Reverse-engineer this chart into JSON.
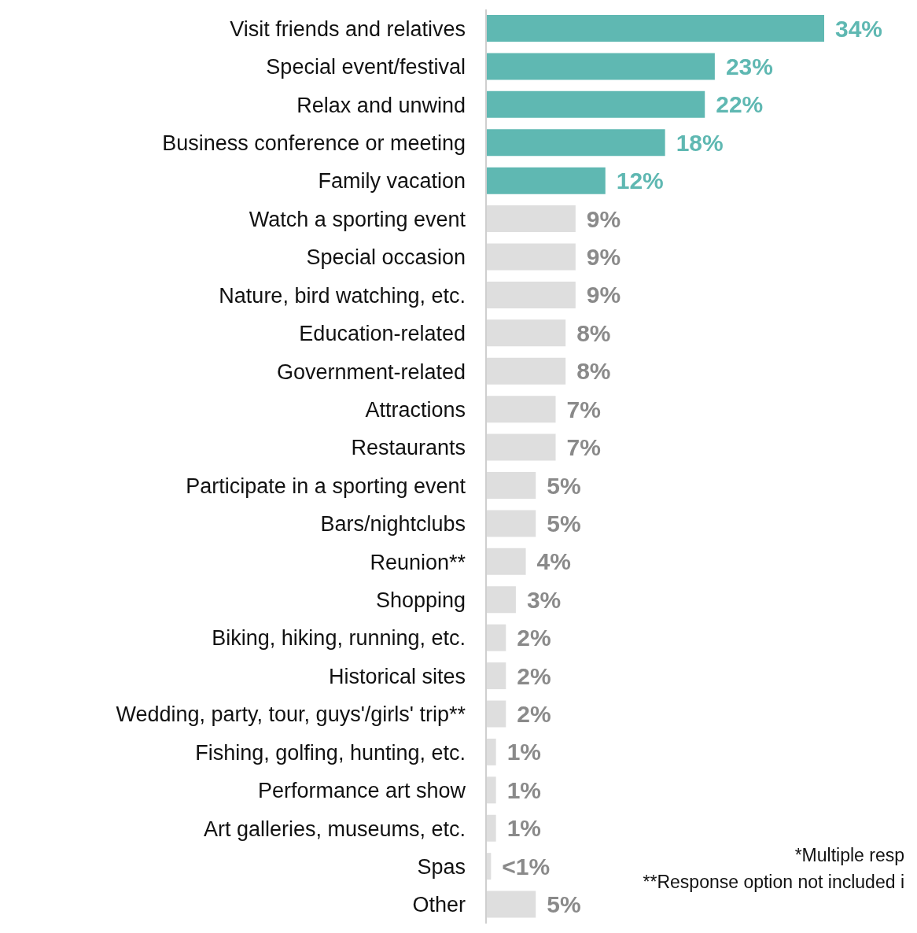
{
  "chart_data": {
    "type": "bar",
    "orientation": "horizontal",
    "categories": [
      "Visit friends and relatives",
      "Special event/festival",
      "Relax and unwind",
      "Business conference or meeting",
      "Family vacation",
      "Watch a sporting event",
      "Special occasion",
      "Nature, bird watching, etc.",
      "Education-related",
      "Government-related",
      "Attractions",
      "Restaurants",
      "Participate in a sporting event",
      "Bars/nightclubs",
      "Reunion**",
      "Shopping",
      "Biking, hiking, running, etc.",
      "Historical sites",
      "Wedding, party, tour, guys'/girls' trip**",
      "Fishing, golfing, hunting, etc.",
      "Performance art show",
      "Art galleries, museums, etc.",
      "Spas",
      "Other"
    ],
    "values": [
      34,
      23,
      22,
      18,
      12,
      9,
      9,
      9,
      8,
      8,
      7,
      7,
      5,
      5,
      4,
      3,
      2,
      2,
      2,
      1,
      1,
      1,
      0.5,
      5
    ],
    "value_labels": [
      "34%",
      "23%",
      "22%",
      "18%",
      "12%",
      "9%",
      "9%",
      "9%",
      "8%",
      "8%",
      "7%",
      "7%",
      "5%",
      "5%",
      "4%",
      "3%",
      "2%",
      "2%",
      "2%",
      "1%",
      "1%",
      "1%",
      "<1%",
      "5%"
    ],
    "colors": [
      "#5fb8b2",
      "#5fb8b2",
      "#5fb8b2",
      "#5fb8b2",
      "#5fb8b2",
      "#dedede",
      "#dedede",
      "#dedede",
      "#dedede",
      "#dedede",
      "#dedede",
      "#dedede",
      "#dedede",
      "#dedede",
      "#dedede",
      "#dedede",
      "#dedede",
      "#dedede",
      "#dedede",
      "#dedede",
      "#dedede",
      "#dedede",
      "#dedede",
      "#dedede"
    ],
    "tick_labels": "y",
    "annotations": [
      "*Multiple resp",
      "**Response option not included i"
    ]
  }
}
